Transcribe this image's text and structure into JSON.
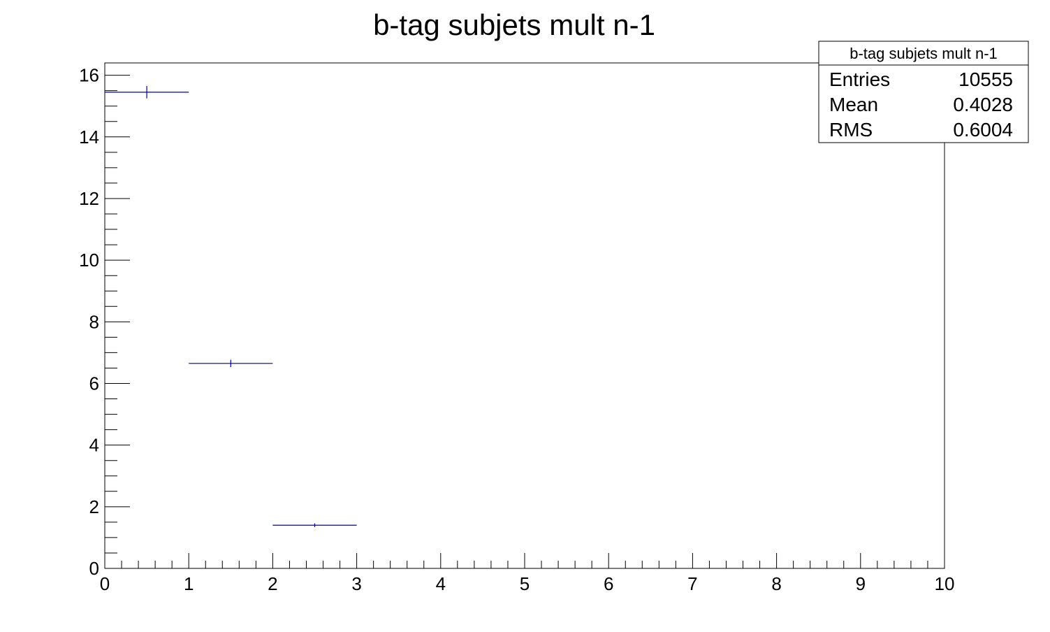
{
  "chart_data": {
    "type": "bar",
    "title": "b-tag subjets mult n-1",
    "xlabel": "",
    "ylabel": "",
    "xlim": [
      0,
      10
    ],
    "ylim": [
      0,
      16.4
    ],
    "x_ticks": [
      0,
      1,
      2,
      3,
      4,
      5,
      6,
      7,
      8,
      9,
      10
    ],
    "y_ticks": [
      0,
      2,
      4,
      6,
      8,
      10,
      12,
      14,
      16
    ],
    "line_color": "#000099",
    "bins": [
      {
        "x_low": 0,
        "x_high": 1,
        "value": 15.45,
        "error": 0.2
      },
      {
        "x_low": 1,
        "x_high": 2,
        "value": 6.65,
        "error": 0.12
      },
      {
        "x_low": 2,
        "x_high": 3,
        "value": 1.4,
        "error": 0.06
      }
    ],
    "stats": {
      "title": "b-tag subjets mult n-1",
      "rows": [
        {
          "label": "Entries",
          "value": "10555"
        },
        {
          "label": "Mean",
          "value": "0.4028"
        },
        {
          "label": "RMS",
          "value": "0.6004"
        }
      ]
    }
  }
}
